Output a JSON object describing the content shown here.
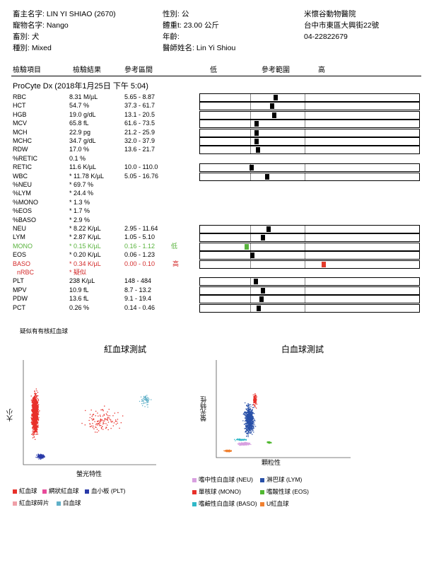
{
  "header": {
    "owner": "畜主名字: LIN YI SHIAO (2670)",
    "pet_name": "寵物名字: Nango",
    "species": "畜別: 犬",
    "breed": "種別: Mixed",
    "sex": "性別: 公",
    "weight": "體重t: 23.00 公斤",
    "age": "年齡:",
    "vet": "醫師姓名: Lin Yi Shiou",
    "clinic_name": "米懷谷動物醫院",
    "clinic_address": "台中市東區大興街22號",
    "clinic_phone": "04-22822679"
  },
  "columns": {
    "item": "檢驗項目",
    "result": "檢驗結果",
    "ref": "參考區間",
    "low": "低",
    "ref_range": "參考範圍",
    "high": "高"
  },
  "instrument": "ProCyte Dx (2018年1月25日 下午 5:04)",
  "rows": [
    {
      "name": "RBC",
      "value": "8.31 M/µL",
      "ref": "5.65 - 8.87",
      "marker": 0.47,
      "status": "normal"
    },
    {
      "name": "HCT",
      "value": "54.7 %",
      "ref": "37.3 - 61.7",
      "marker": 0.4,
      "status": "normal"
    },
    {
      "name": "HGB",
      "value": "19.0 g/dL",
      "ref": "13.1 - 20.5",
      "marker": 0.44,
      "status": "normal"
    },
    {
      "name": "MCV",
      "value": "65.8 fL",
      "ref": "61.6 - 73.5",
      "marker": 0.12,
      "status": "normal"
    },
    {
      "name": "MCH",
      "value": "22.9 pg",
      "ref": "21.2 - 25.9",
      "marker": 0.12,
      "status": "normal"
    },
    {
      "name": "MCHC",
      "value": "34.7 g/dL",
      "ref": "32.0 - 37.9",
      "marker": 0.12,
      "status": "normal"
    },
    {
      "name": "RDW",
      "value": "17.0 %",
      "ref": "13.6 - 21.7",
      "marker": 0.14,
      "status": "normal"
    },
    {
      "name": "%RETIC",
      "value": "0.1 %",
      "ref": "",
      "marker": null,
      "status": "normal"
    },
    {
      "name": "RETIC",
      "value": "11.6 K/µL",
      "ref": "10.0 - 110.0",
      "marker": 0.02,
      "status": "normal"
    },
    {
      "name": "WBC",
      "value": "* 11.78 K/µL",
      "ref": "5.05 - 16.76",
      "marker": 0.31,
      "status": "normal"
    },
    {
      "name": "%NEU",
      "value": "* 69.7 %",
      "ref": "",
      "marker": null,
      "status": "normal"
    },
    {
      "name": "%LYM",
      "value": "* 24.4 %",
      "ref": "",
      "marker": null,
      "status": "normal"
    },
    {
      "name": "%MONO",
      "value": "* 1.3 %",
      "ref": "",
      "marker": null,
      "status": "normal"
    },
    {
      "name": "%EOS",
      "value": "* 1.7 %",
      "ref": "",
      "marker": null,
      "status": "normal"
    },
    {
      "name": "%BASO",
      "value": "* 2.9 %",
      "ref": "",
      "marker": null,
      "status": "normal"
    },
    {
      "name": "NEU",
      "value": "* 8.22 K/µL",
      "ref": "2.95 - 11.64",
      "marker": 0.34,
      "status": "normal"
    },
    {
      "name": "LYM",
      "value": "* 2.87 K/µL",
      "ref": "1.05 - 5.10",
      "marker": 0.24,
      "status": "normal"
    },
    {
      "name": "MONO",
      "value": "* 0.15 K/µL",
      "ref": "0.16 - 1.12",
      "flag": "低",
      "marker": -0.06,
      "status": "low"
    },
    {
      "name": "EOS",
      "value": "* 0.20 K/µL",
      "ref": "0.06 - 1.23",
      "marker": 0.04,
      "status": "normal"
    },
    {
      "name": "BASO",
      "value": "* 0.34 K/µL",
      "ref": "0.00 - 0.10",
      "flag": "高",
      "marker": 1.35,
      "status": "high"
    },
    {
      "name": "nRBC",
      "value": "* 疑似",
      "ref": "",
      "marker": null,
      "status": "high"
    },
    {
      "name": "PLT",
      "value": "238 K/µL",
      "ref": "148 - 484",
      "marker": 0.1,
      "status": "normal"
    },
    {
      "name": "MPV",
      "value": "10.9 fL",
      "ref": "8.7 - 13.2",
      "marker": 0.24,
      "status": "normal"
    },
    {
      "name": "PDW",
      "value": "13.6 fL",
      "ref": "9.1 - 19.4",
      "marker": 0.21,
      "status": "normal"
    },
    {
      "name": "PCT",
      "value": "0.26 %",
      "ref": "0.14 - 0.46",
      "marker": 0.15,
      "status": "normal"
    }
  ],
  "note": "疑似有有核紅血球",
  "rbc_chart": {
    "title": "紅血球測試",
    "ylabel": "大小",
    "xlabel": "螢光特性",
    "legend": [
      {
        "label": "紅血球",
        "color": "#e8302a"
      },
      {
        "label": "網狀紅血球",
        "color": "#e84a9a"
      },
      {
        "label": "血小板 (PLT)",
        "color": "#2a3aa8"
      },
      {
        "label": "紅血球碎片",
        "color": "#f0a0a8"
      },
      {
        "label": "白血球",
        "color": "#60b0c8"
      }
    ]
  },
  "wbc_chart": {
    "title": "白血球測試",
    "ylabel": "螢光特性",
    "xlabel": "顆粒性",
    "legend": [
      {
        "label": "嗜中性白血球 (NEU)",
        "color": "#d8a0e0"
      },
      {
        "label": "淋巴球 (LYM)",
        "color": "#2850a8"
      },
      {
        "label": "單核球 (MONO)",
        "color": "#e8302a"
      },
      {
        "label": "嗜酸性球 (EOS)",
        "color": "#50b830"
      },
      {
        "label": "嗜鹼性白血球 (BASO)",
        "color": "#30b8c8"
      },
      {
        "label": "U紅血球",
        "color": "#f08030"
      }
    ]
  }
}
